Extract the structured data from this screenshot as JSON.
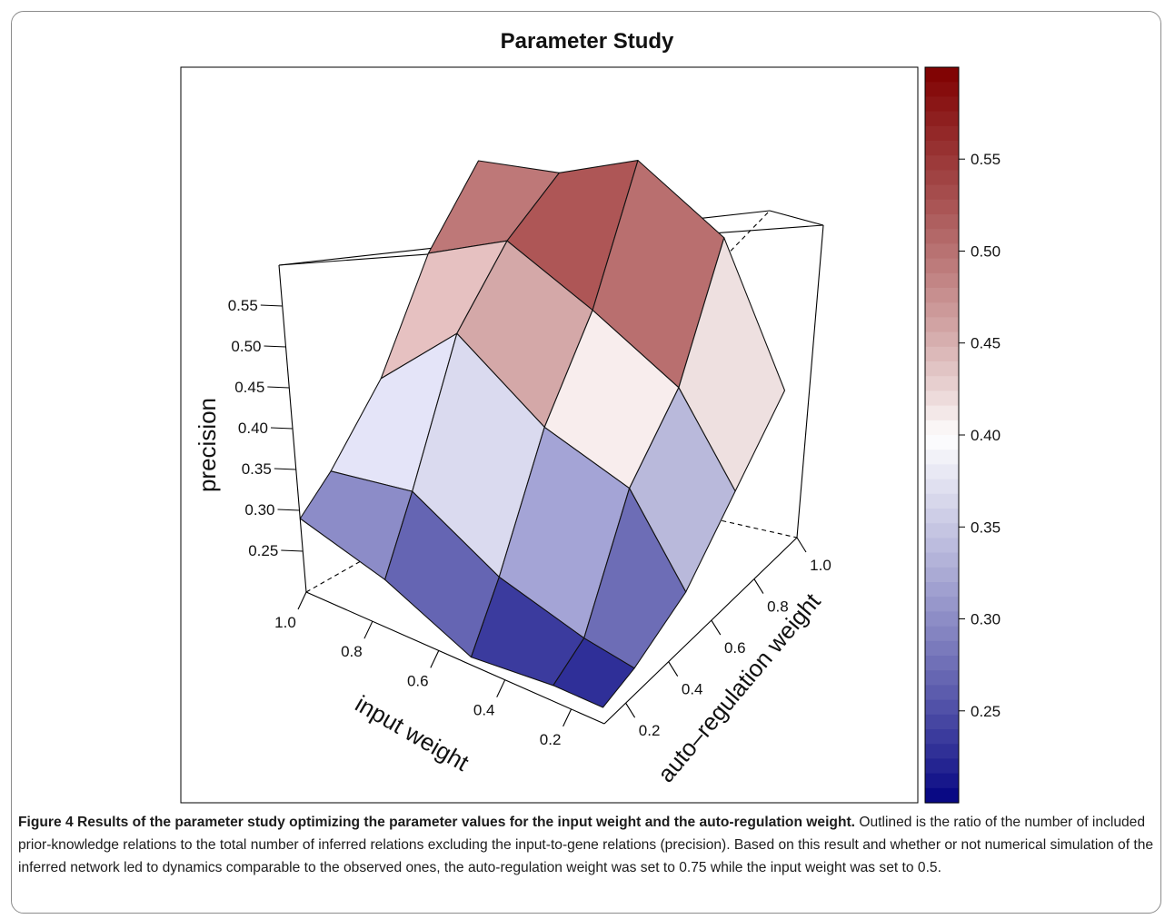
{
  "chart_data": {
    "type": "surface3d",
    "title": "Parameter Study",
    "xlabel": "input weight",
    "ylabel": "auto–regulation weight",
    "zlabel": "precision",
    "x_ticks": [
      "0.2",
      "0.4",
      "0.6",
      "0.8",
      "1.0"
    ],
    "y_ticks": [
      "0.2",
      "0.4",
      "0.6",
      "0.8",
      "1.0"
    ],
    "z_ticks": [
      "0.25",
      "0.30",
      "0.35",
      "0.40",
      "0.45",
      "0.50",
      "0.55"
    ],
    "x_values": [
      0.1,
      0.25,
      0.5,
      0.75,
      1.0
    ],
    "y_values": [
      0.1,
      0.25,
      0.5,
      0.75,
      1.0
    ],
    "precision_grid": [
      [
        0.22,
        0.23,
        0.26,
        0.32,
        0.38
      ],
      [
        0.22,
        0.24,
        0.36,
        0.42,
        0.54
      ],
      [
        0.21,
        0.27,
        0.39,
        0.47,
        0.59
      ],
      [
        0.26,
        0.33,
        0.46,
        0.51,
        0.53
      ],
      [
        0.29,
        0.31,
        0.36,
        0.45,
        0.5
      ]
    ],
    "xlim": [
      0.1,
      1.0
    ],
    "ylim": [
      0.1,
      1.0
    ],
    "zlim": [
      0.2,
      0.6
    ],
    "colorbar": {
      "range": [
        0.2,
        0.6
      ],
      "ticks": [
        "0.25",
        "0.30",
        "0.35",
        "0.40",
        "0.45",
        "0.50",
        "0.55"
      ],
      "low_color": "#00007f",
      "mid_color": "#ffffff",
      "high_color": "#7f0000"
    }
  },
  "caption": {
    "head": "Figure 4 Results of the parameter study optimizing the parameter values for the input weight and the auto-regulation weight.",
    "body": " Outlined is the ratio of the number of included prior-knowledge relations to the total number of inferred relations excluding the input-to-gene relations (precision). Based on this result and whether or not numerical simulation of the inferred network led to dynamics comparable to the observed ones, the auto-regulation weight was set to 0.75 while the input weight was set to 0.5."
  }
}
